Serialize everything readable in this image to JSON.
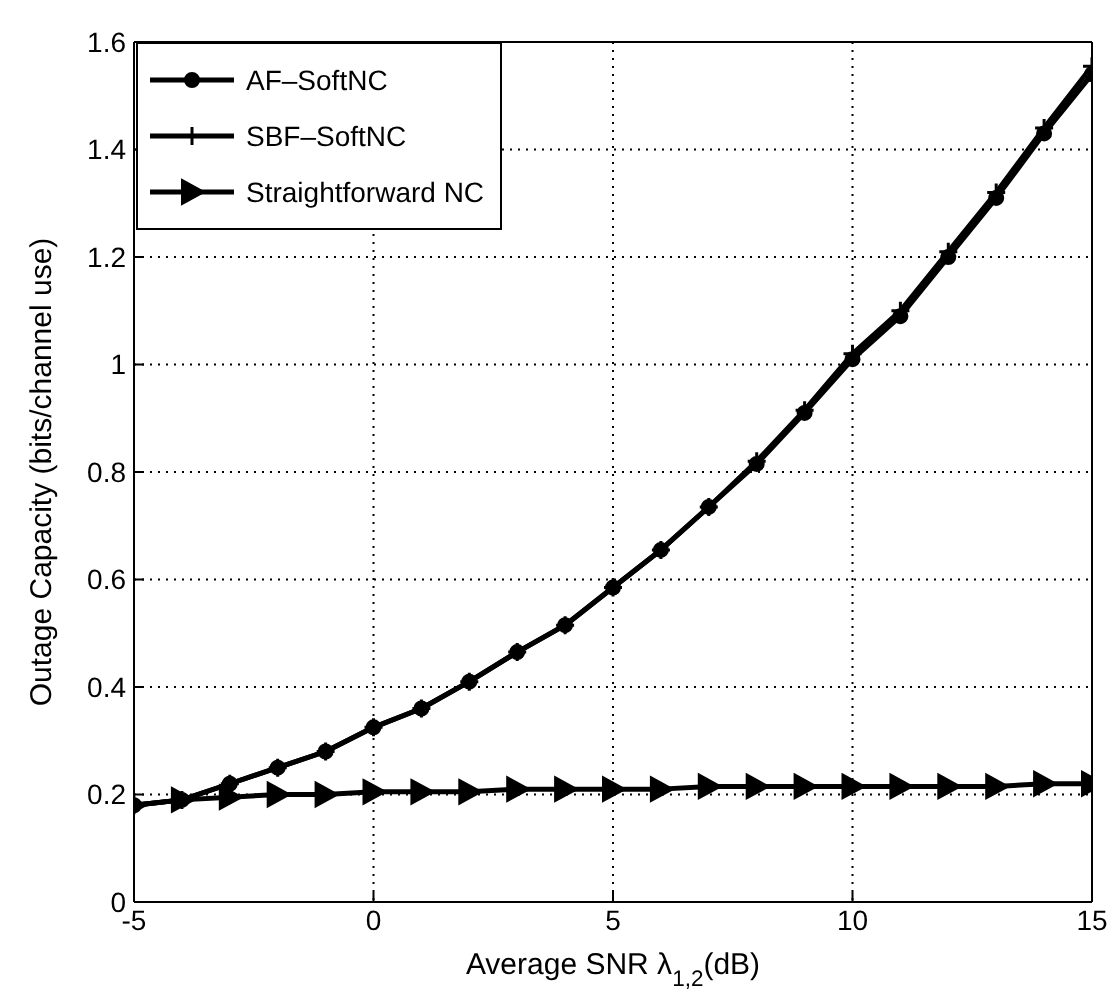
{
  "chart_data": {
    "type": "line",
    "xlabel": "Average SNR λ$_{1,2}$(dB)",
    "ylabel": "Outage Capacity (bits/channel use)",
    "x": [
      -5,
      -4,
      -3,
      -2,
      -1,
      0,
      1,
      2,
      3,
      4,
      5,
      6,
      7,
      8,
      9,
      10,
      11,
      12,
      13,
      14,
      15
    ],
    "series": [
      {
        "name": "AF–SoftNC",
        "color": "#000000",
        "marker": "circle",
        "values": [
          0.18,
          0.19,
          0.22,
          0.25,
          0.28,
          0.325,
          0.36,
          0.41,
          0.465,
          0.515,
          0.585,
          0.655,
          0.735,
          0.815,
          0.91,
          1.01,
          1.09,
          1.2,
          1.31,
          1.43,
          1.54
        ]
      },
      {
        "name": "SBF–SoftNC",
        "color": "#000000",
        "marker": "cross",
        "values": [
          0.18,
          0.19,
          0.22,
          0.25,
          0.28,
          0.325,
          0.36,
          0.41,
          0.465,
          0.515,
          0.585,
          0.655,
          0.735,
          0.82,
          0.915,
          1.02,
          1.1,
          1.21,
          1.32,
          1.44,
          1.555
        ]
      },
      {
        "name": "Straightforward NC",
        "color": "#000000",
        "marker": "triangle",
        "values": [
          0.18,
          0.19,
          0.195,
          0.2,
          0.2,
          0.205,
          0.205,
          0.205,
          0.21,
          0.21,
          0.21,
          0.21,
          0.215,
          0.215,
          0.215,
          0.215,
          0.215,
          0.215,
          0.215,
          0.22,
          0.22
        ]
      }
    ],
    "xlim": [
      -5,
      15
    ],
    "xticks": [
      -5,
      0,
      5,
      10,
      15
    ],
    "ylim": [
      0,
      1.6
    ],
    "yticks": [
      0,
      0.2,
      0.4,
      0.6,
      0.8,
      1,
      1.2,
      1.4,
      1.6
    ],
    "grid": true,
    "legend": "top left",
    "line_style": "solid"
  }
}
